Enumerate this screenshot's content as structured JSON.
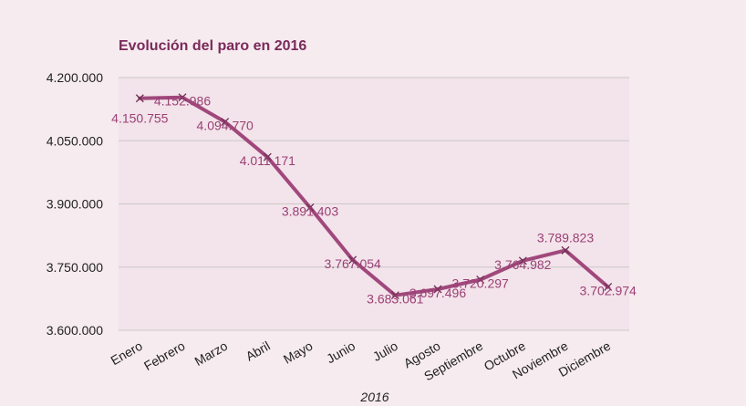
{
  "chart_data": {
    "type": "line",
    "title": "Evolución del paro en 2016",
    "xlabel": "2016",
    "ylabel": "",
    "categories": [
      "Enero",
      "Febrero",
      "Marzo",
      "Abril",
      "Mayo",
      "Junio",
      "Julio",
      "Agosto",
      "Septiembre",
      "Octubre",
      "Noviembre",
      "Diciembre"
    ],
    "series": [
      {
        "values": [
          4150755,
          4152986,
          4094770,
          4011171,
          3891403,
          3767054,
          3683061,
          3697496,
          3720297,
          3764982,
          3789823,
          3702974
        ],
        "labels": [
          "4.150.755",
          "4.152.986",
          "4.094.770",
          "4.011.171",
          "3.891.403",
          "3.767.054",
          "3.683.061",
          "3.697.496",
          "3.720.297",
          "3.764.982",
          "3.789.823",
          "3.702.974"
        ],
        "color": "#a0487c",
        "marker": "x"
      }
    ],
    "ylim": [
      3600000,
      4200000
    ],
    "yticks": [
      4200000,
      4050000,
      3900000,
      3750000,
      3600000
    ],
    "ytick_labels": [
      "4.200.000",
      "4.050.000",
      "3.900.000",
      "3.750.000",
      "3.600.000"
    ],
    "grid": true,
    "legend": "none",
    "colors": {
      "background": "#f6ebef",
      "plot_background": "#f3e3ea",
      "grid": "#c9c9c9",
      "line": "#a0487c",
      "title": "#7a2a5a",
      "data_label": "#9a4075"
    }
  }
}
